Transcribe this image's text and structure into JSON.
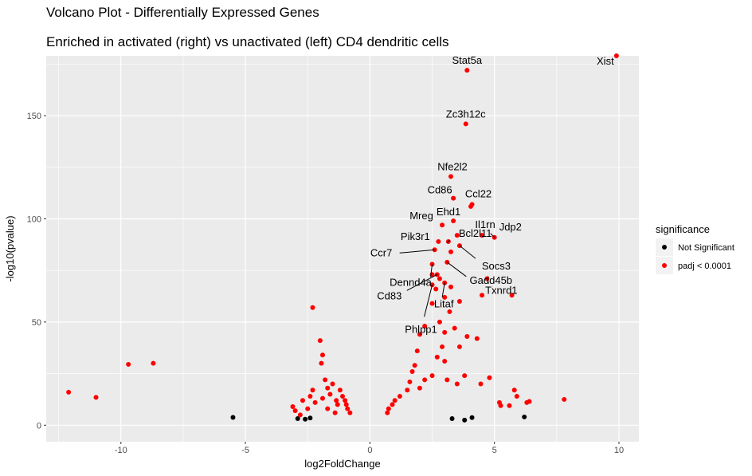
{
  "chart_data": {
    "type": "scatter",
    "title": "Volcano Plot - Differentially Expressed Genes",
    "subtitle": "Enriched in activated (right) vs unactivated (left) CD4 dendritic cells",
    "xlabel": "log2FoldChange",
    "ylabel": "-log10(pvalue)",
    "xlim": [
      -13,
      10.8
    ],
    "ylim": [
      -8,
      179
    ],
    "xticks": [
      -10,
      -5,
      0,
      5,
      10
    ],
    "yticks": [
      0,
      50,
      100,
      150
    ],
    "grid": true,
    "legend": {
      "title": "significance",
      "position": "right",
      "entries": [
        {
          "label": "Not Significant",
          "color": "#000000"
        },
        {
          "label": "padj < 0.0001",
          "color": "#ff0000"
        }
      ]
    },
    "series": [
      {
        "name": "Not Significant",
        "color": "#000000",
        "points": [
          [
            -5.5,
            3.8
          ],
          [
            6.2,
            4.0
          ],
          [
            3.8,
            2.5
          ],
          [
            4.1,
            3.7
          ],
          [
            3.3,
            3.2
          ],
          [
            -2.4,
            3.5
          ],
          [
            -2.6,
            2.9
          ],
          [
            -2.9,
            3.2
          ]
        ]
      },
      {
        "name": "padj < 0.0001",
        "color": "#ff0000",
        "points": [
          [
            9.9,
            179
          ],
          [
            3.9,
            172
          ],
          [
            3.85,
            146
          ],
          [
            3.25,
            120.5
          ],
          [
            3.35,
            110
          ],
          [
            4.1,
            107
          ],
          [
            4.05,
            106
          ],
          [
            3.35,
            99
          ],
          [
            2.9,
            97
          ],
          [
            3.5,
            92
          ],
          [
            5.0,
            91
          ],
          [
            4.5,
            92
          ],
          [
            2.75,
            89
          ],
          [
            3.15,
            89
          ],
          [
            3.6,
            87
          ],
          [
            2.6,
            85
          ],
          [
            3.25,
            84
          ],
          [
            2.5,
            78
          ],
          [
            3.1,
            79
          ],
          [
            2.7,
            73
          ],
          [
            2.5,
            73
          ],
          [
            2.8,
            71
          ],
          [
            4.7,
            71
          ],
          [
            3.0,
            69
          ],
          [
            2.5,
            68
          ],
          [
            3.25,
            67
          ],
          [
            2.65,
            66
          ],
          [
            4.5,
            63
          ],
          [
            5.7,
            63
          ],
          [
            -2.3,
            57
          ],
          [
            -2.0,
            41
          ],
          [
            -1.9,
            34
          ],
          [
            -1.95,
            30
          ],
          [
            -9.7,
            29.5
          ],
          [
            -8.7,
            30
          ],
          [
            -12.1,
            16
          ],
          [
            -11.0,
            13.5
          ],
          [
            7.8,
            12.5
          ],
          [
            6.4,
            11.5
          ],
          [
            6.3,
            11
          ],
          [
            5.2,
            11
          ],
          [
            5.25,
            9.5
          ],
          [
            5.6,
            9.5
          ],
          [
            5.8,
            17
          ],
          [
            5.9,
            14
          ],
          [
            4.8,
            23
          ],
          [
            4.45,
            20
          ],
          [
            3.8,
            24
          ],
          [
            4.3,
            42
          ],
          [
            3.6,
            38
          ],
          [
            3.9,
            43
          ],
          [
            3.6,
            60
          ],
          [
            3.0,
            62
          ],
          [
            2.5,
            59
          ],
          [
            3.2,
            55
          ],
          [
            2.8,
            50
          ],
          [
            3.4,
            47
          ],
          [
            2.2,
            48
          ],
          [
            2.0,
            44
          ],
          [
            3.0,
            45
          ],
          [
            1.9,
            36
          ],
          [
            2.9,
            38
          ],
          [
            3.0,
            31
          ],
          [
            2.7,
            33
          ],
          [
            1.8,
            29
          ],
          [
            1.7,
            26
          ],
          [
            2.5,
            24
          ],
          [
            2.2,
            22
          ],
          [
            1.6,
            21
          ],
          [
            3.1,
            22
          ],
          [
            3.5,
            20
          ],
          [
            2.0,
            18
          ],
          [
            1.5,
            17
          ],
          [
            1.2,
            14
          ],
          [
            1.0,
            12
          ],
          [
            0.9,
            10
          ],
          [
            0.75,
            8
          ],
          [
            0.7,
            6
          ],
          [
            -1.5,
            20
          ],
          [
            -1.2,
            17
          ],
          [
            -1.6,
            15
          ],
          [
            -1.9,
            13
          ],
          [
            -1.0,
            12
          ],
          [
            -1.3,
            10
          ],
          [
            -2.2,
            11
          ],
          [
            -0.9,
            8
          ],
          [
            -1.7,
            8
          ],
          [
            -0.8,
            6
          ],
          [
            -2.5,
            8
          ],
          [
            -2.7,
            12
          ],
          [
            -3.0,
            7
          ],
          [
            -3.1,
            9
          ],
          [
            -2.8,
            5
          ],
          [
            -1.1,
            14
          ],
          [
            -0.95,
            10
          ],
          [
            -1.4,
            6
          ],
          [
            -2.3,
            17
          ],
          [
            -1.8,
            22
          ],
          [
            -1.7,
            18
          ],
          [
            -2.4,
            14
          ],
          [
            -1.35,
            12
          ]
        ]
      }
    ],
    "annotations": [
      {
        "label": "Xist",
        "x": 9.9,
        "y": 179
      },
      {
        "label": "Stat5a",
        "x": 3.9,
        "y": 172
      },
      {
        "label": "Zc3h12c",
        "x": 3.85,
        "y": 146
      },
      {
        "label": "Nfe2l2",
        "x": 3.25,
        "y": 120.5
      },
      {
        "label": "Cd86",
        "x": 3.35,
        "y": 110
      },
      {
        "label": "Ccl22",
        "x": 4.1,
        "y": 107
      },
      {
        "label": "Ehd1",
        "x": 3.35,
        "y": 99
      },
      {
        "label": "Mreg",
        "x": 2.9,
        "y": 97
      },
      {
        "label": "Il1rn",
        "x": 4.5,
        "y": 92
      },
      {
        "label": "Jdp2",
        "x": 5.0,
        "y": 91
      },
      {
        "label": "Bcl2l11",
        "x": 3.15,
        "y": 89
      },
      {
        "label": "Pik3r1",
        "x": 2.75,
        "y": 89
      },
      {
        "label": "Socs3",
        "x": 3.6,
        "y": 87
      },
      {
        "label": "Ccr7",
        "x": 2.6,
        "y": 85
      },
      {
        "label": "Dennd4a",
        "x": 2.5,
        "y": 78
      },
      {
        "label": "Gadd45b",
        "x": 3.1,
        "y": 79
      },
      {
        "label": "Cd83",
        "x": 2.7,
        "y": 73
      },
      {
        "label": "Litaf",
        "x": 3.0,
        "y": 69
      },
      {
        "label": "Txnrd1",
        "x": 4.7,
        "y": 71
      },
      {
        "label": "Phlpp1",
        "x": 2.5,
        "y": 68
      }
    ]
  }
}
